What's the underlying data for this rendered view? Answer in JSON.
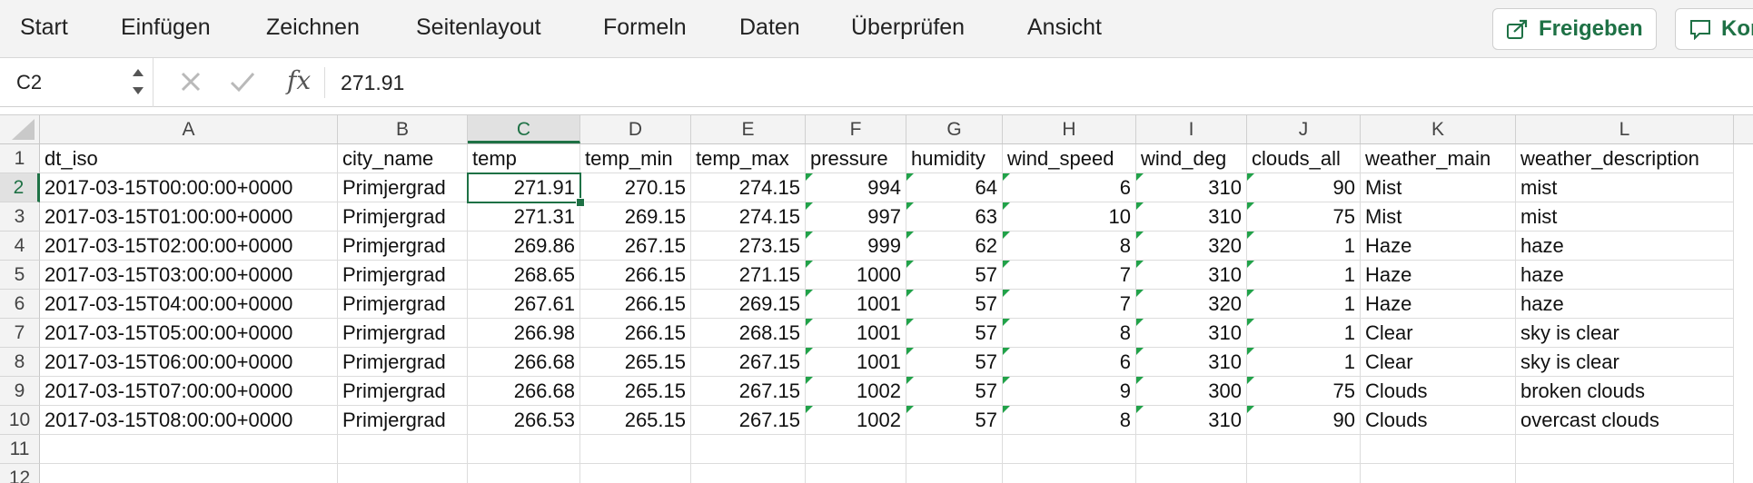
{
  "ribbon": {
    "tabs": [
      "Start",
      "Einfügen",
      "Zeichnen",
      "Seitenlayout",
      "Formeln",
      "Daten",
      "Überprüfen",
      "Ansicht"
    ],
    "share_label": "Freigeben",
    "comments_label": "Kommentare"
  },
  "formula_bar": {
    "name_box": "C2",
    "fx_label": "fx",
    "content": "271.91"
  },
  "grid": {
    "columns": [
      "A",
      "B",
      "C",
      "D",
      "E",
      "F",
      "G",
      "H",
      "I",
      "J",
      "K",
      "L"
    ],
    "rows": [
      "1",
      "2",
      "3",
      "4",
      "5",
      "6",
      "7",
      "8",
      "9",
      "10",
      "11",
      "12"
    ],
    "selected_cell": "C2",
    "header": [
      "dt_iso",
      "city_name",
      "temp",
      "temp_min",
      "temp_max",
      "pressure",
      "humidity",
      "wind_speed",
      "wind_deg",
      "clouds_all",
      "weather_main",
      "weather_description"
    ],
    "data": [
      [
        "2017-03-15T00:00:00+0000",
        "Primjergrad",
        "271.91",
        "270.15",
        "274.15",
        "994",
        "64",
        "6",
        "310",
        "90",
        "Mist",
        "mist"
      ],
      [
        "2017-03-15T01:00:00+0000",
        "Primjergrad",
        "271.31",
        "269.15",
        "274.15",
        "997",
        "63",
        "10",
        "310",
        "75",
        "Mist",
        "mist"
      ],
      [
        "2017-03-15T02:00:00+0000",
        "Primjergrad",
        "269.86",
        "267.15",
        "273.15",
        "999",
        "62",
        "8",
        "320",
        "1",
        "Haze",
        "haze"
      ],
      [
        "2017-03-15T03:00:00+0000",
        "Primjergrad",
        "268.65",
        "266.15",
        "271.15",
        "1000",
        "57",
        "7",
        "310",
        "1",
        "Haze",
        "haze"
      ],
      [
        "2017-03-15T04:00:00+0000",
        "Primjergrad",
        "267.61",
        "266.15",
        "269.15",
        "1001",
        "57",
        "7",
        "320",
        "1",
        "Haze",
        "haze"
      ],
      [
        "2017-03-15T05:00:00+0000",
        "Primjergrad",
        "266.98",
        "266.15",
        "268.15",
        "1001",
        "57",
        "8",
        "310",
        "1",
        "Clear",
        "sky is clear"
      ],
      [
        "2017-03-15T06:00:00+0000",
        "Primjergrad",
        "266.68",
        "265.15",
        "267.15",
        "1001",
        "57",
        "6",
        "310",
        "1",
        "Clear",
        "sky is clear"
      ],
      [
        "2017-03-15T07:00:00+0000",
        "Primjergrad",
        "266.68",
        "265.15",
        "267.15",
        "1002",
        "57",
        "9",
        "300",
        "75",
        "Clouds",
        "broken clouds"
      ],
      [
        "2017-03-15T08:00:00+0000",
        "Primjergrad",
        "266.53",
        "265.15",
        "267.15",
        "1002",
        "57",
        "8",
        "310",
        "90",
        "Clouds",
        "overcast clouds"
      ]
    ]
  },
  "colors": {
    "accent": "#1e7145",
    "flag": "#21a249"
  },
  "icons": {
    "share": "share-icon",
    "comment": "comment-icon",
    "cancel": "cancel-icon",
    "confirm": "check-icon"
  }
}
